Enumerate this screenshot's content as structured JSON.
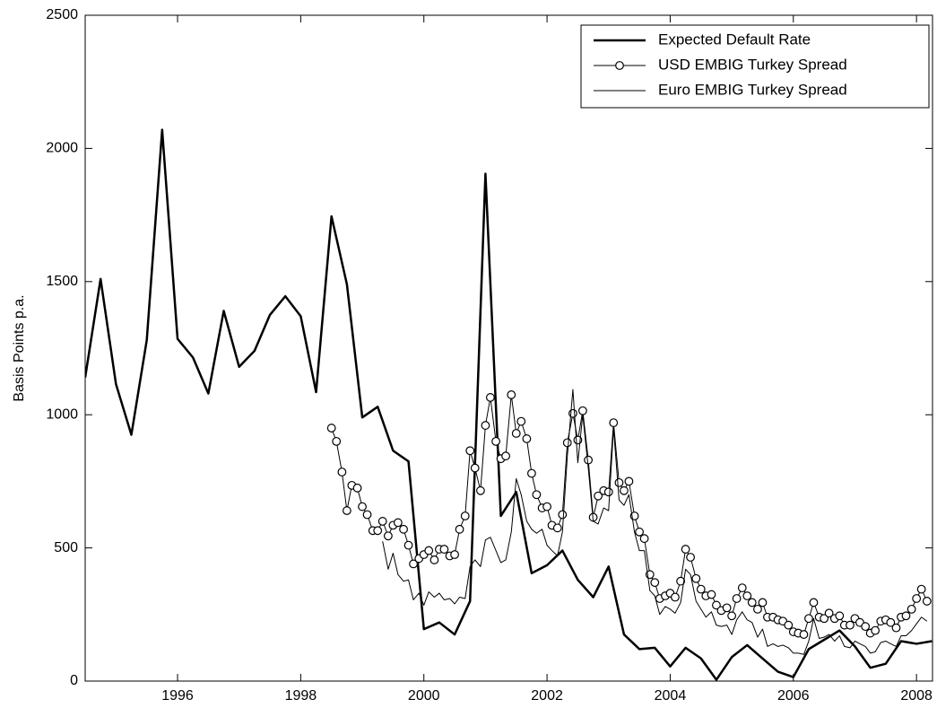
{
  "chart_data": {
    "type": "line",
    "ylabel": "Basis Points p.a.",
    "xlim": [
      1994.5,
      2008.26
    ],
    "xticks": [
      1996,
      1998,
      2000,
      2002,
      2004,
      2006,
      2008
    ],
    "ylim": [
      0,
      2500
    ],
    "yticks": [
      0,
      500,
      1000,
      1500,
      2000,
      2500
    ],
    "grid": false,
    "legend": "upper right",
    "series": [
      {
        "name": "Expected Default Rate",
        "color": "#000000",
        "linewidth": 2.5,
        "marker": "none",
        "x": [
          1994.5,
          1994.75,
          1995,
          1995.25,
          1995.5,
          1995.75,
          1996,
          1996.25,
          1996.5,
          1996.75,
          1997,
          1997.25,
          1997.5,
          1997.75,
          1998,
          1998.25,
          1998.5,
          1998.75,
          1999,
          1999.25,
          1999.5,
          1999.75,
          2000,
          2000.25,
          2000.5,
          2000.75,
          2001,
          2001.25,
          2001.5,
          2001.75,
          2002,
          2002.25,
          2002.5,
          2002.75,
          2003,
          2003.25,
          2003.5,
          2003.75,
          2004,
          2004.25,
          2004.5,
          2004.75,
          2005,
          2005.25,
          2005.5,
          2005.75,
          2006,
          2006.25,
          2006.5,
          2006.75,
          2007,
          2007.25,
          2007.5,
          2007.75,
          2008,
          2008.25
        ],
        "values": [
          1140,
          1510,
          1115,
          925,
          1280,
          2070,
          1285,
          1215,
          1080,
          1390,
          1180,
          1240,
          1375,
          1445,
          1370,
          1085,
          1745,
          1490,
          990,
          1030,
          865,
          825,
          195,
          220,
          175,
          300,
          1905,
          620,
          710,
          405,
          435,
          490,
          380,
          315,
          430,
          175,
          120,
          125,
          55,
          125,
          85,
          5,
          90,
          135,
          85,
          35,
          15,
          120,
          155,
          190,
          130,
          50,
          65,
          150,
          140,
          150
        ]
      },
      {
        "name": "USD EMBIG Turkey Spread",
        "color": "#000000",
        "linewidth": 1,
        "marker": "circle",
        "x": [
          1998.5,
          1998.58,
          1998.67,
          1998.75,
          1998.83,
          1998.92,
          1999,
          1999.08,
          1999.17,
          1999.25,
          1999.33,
          1999.42,
          1999.5,
          1999.58,
          1999.67,
          1999.75,
          1999.83,
          1999.92,
          2000,
          2000.08,
          2000.17,
          2000.25,
          2000.33,
          2000.42,
          2000.5,
          2000.58,
          2000.67,
          2000.75,
          2000.83,
          2000.92,
          2001,
          2001.08,
          2001.17,
          2001.25,
          2001.33,
          2001.42,
          2001.5,
          2001.58,
          2001.67,
          2001.75,
          2001.83,
          2001.92,
          2002,
          2002.08,
          2002.17,
          2002.25,
          2002.33,
          2002.42,
          2002.5,
          2002.58,
          2002.67,
          2002.75,
          2002.83,
          2002.92,
          2003,
          2003.08,
          2003.17,
          2003.25,
          2003.33,
          2003.42,
          2003.5,
          2003.58,
          2003.67,
          2003.75,
          2003.83,
          2003.92,
          2004,
          2004.08,
          2004.17,
          2004.25,
          2004.33,
          2004.42,
          2004.5,
          2004.58,
          2004.67,
          2004.75,
          2004.83,
          2004.92,
          2005,
          2005.08,
          2005.17,
          2005.25,
          2005.33,
          2005.42,
          2005.5,
          2005.58,
          2005.67,
          2005.75,
          2005.83,
          2005.92,
          2006,
          2006.08,
          2006.17,
          2006.25,
          2006.33,
          2006.42,
          2006.5,
          2006.58,
          2006.67,
          2006.75,
          2006.83,
          2006.92,
          2007,
          2007.08,
          2007.17,
          2007.25,
          2007.33,
          2007.42,
          2007.5,
          2007.58,
          2007.67,
          2007.75,
          2007.83,
          2007.92,
          2008,
          2008.08,
          2008.17
        ],
        "values": [
          950,
          900,
          785,
          640,
          735,
          725,
          655,
          625,
          565,
          565,
          600,
          545,
          585,
          595,
          570,
          510,
          440,
          460,
          475,
          490,
          455,
          495,
          495,
          470,
          475,
          570,
          620,
          865,
          800,
          715,
          960,
          1065,
          900,
          835,
          845,
          1075,
          930,
          975,
          910,
          780,
          700,
          650,
          655,
          585,
          575,
          625,
          895,
          1005,
          905,
          1015,
          830,
          615,
          695,
          715,
          710,
          970,
          745,
          715,
          750,
          620,
          560,
          535,
          400,
          370,
          310,
          320,
          330,
          315,
          375,
          495,
          465,
          385,
          345,
          320,
          325,
          285,
          265,
          275,
          245,
          310,
          350,
          320,
          295,
          270,
          295,
          240,
          240,
          230,
          225,
          210,
          185,
          180,
          175,
          235,
          295,
          240,
          235,
          255,
          235,
          245,
          210,
          210,
          235,
          220,
          205,
          180,
          190,
          225,
          230,
          220,
          200,
          240,
          245,
          270,
          310,
          345,
          300
        ]
      },
      {
        "name": "Euro EMBIG Turkey Spread",
        "color": "#000000",
        "linewidth": 1,
        "marker": "none",
        "x": [
          1999.33,
          1999.42,
          1999.5,
          1999.58,
          1999.67,
          1999.75,
          1999.83,
          1999.92,
          2000,
          2000.08,
          2000.17,
          2000.25,
          2000.33,
          2000.42,
          2000.5,
          2000.58,
          2000.67,
          2000.75,
          2000.83,
          2000.92,
          2001,
          2001.08,
          2001.17,
          2001.25,
          2001.33,
          2001.42,
          2001.5,
          2001.58,
          2001.67,
          2001.75,
          2001.83,
          2001.92,
          2002,
          2002.08,
          2002.17,
          2002.25,
          2002.33,
          2002.42,
          2002.5,
          2002.58,
          2002.67,
          2002.75,
          2002.83,
          2002.92,
          2003,
          2003.08,
          2003.17,
          2003.25,
          2003.33,
          2003.42,
          2003.5,
          2003.58,
          2003.67,
          2003.75,
          2003.83,
          2003.92,
          2004,
          2004.08,
          2004.17,
          2004.25,
          2004.33,
          2004.42,
          2004.5,
          2004.58,
          2004.67,
          2004.75,
          2004.83,
          2004.92,
          2005,
          2005.08,
          2005.17,
          2005.25,
          2005.33,
          2005.42,
          2005.5,
          2005.58,
          2005.67,
          2005.75,
          2005.83,
          2005.92,
          2006,
          2006.08,
          2006.17,
          2006.25,
          2006.33,
          2006.42,
          2006.5,
          2006.58,
          2006.67,
          2006.75,
          2006.83,
          2006.92,
          2007,
          2007.08,
          2007.17,
          2007.25,
          2007.33,
          2007.42,
          2007.5,
          2007.58,
          2007.67,
          2007.75,
          2007.83,
          2007.92,
          2008,
          2008.08,
          2008.17
        ],
        "values": [
          525,
          420,
          480,
          400,
          375,
          380,
          305,
          330,
          285,
          335,
          315,
          330,
          305,
          310,
          290,
          315,
          310,
          430,
          455,
          430,
          530,
          540,
          490,
          445,
          455,
          560,
          760,
          700,
          600,
          570,
          555,
          570,
          510,
          490,
          470,
          560,
          845,
          1095,
          820,
          1000,
          800,
          600,
          590,
          650,
          640,
          950,
          680,
          660,
          700,
          560,
          490,
          490,
          340,
          320,
          250,
          280,
          270,
          255,
          295,
          420,
          400,
          300,
          270,
          240,
          260,
          210,
          205,
          210,
          175,
          230,
          260,
          230,
          220,
          165,
          195,
          130,
          140,
          130,
          135,
          125,
          105,
          105,
          100,
          150,
          235,
          160,
          165,
          175,
          150,
          170,
          130,
          125,
          150,
          140,
          130,
          105,
          110,
          145,
          150,
          140,
          130,
          170,
          170,
          190,
          215,
          240,
          225
        ]
      }
    ]
  }
}
